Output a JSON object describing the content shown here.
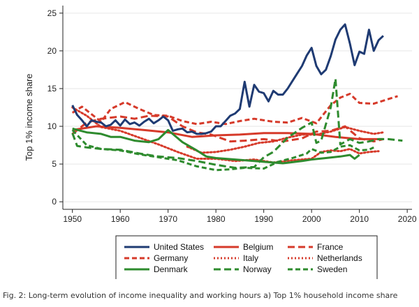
{
  "figure": {
    "caption": "Fig. 2: Long-term evolution of income inequality and working hours a) Top 1% household income share"
  },
  "chart_data": {
    "type": "line",
    "ylabel": "Top 1% income share",
    "xlabel": "",
    "xlim": [
      1948,
      2021
    ],
    "ylim": [
      -1,
      26
    ],
    "x_ticks": [
      1950,
      1960,
      1970,
      1980,
      1990,
      2000,
      2010,
      2020
    ],
    "y_ticks": [
      0,
      5,
      10,
      15,
      20,
      25
    ],
    "grid": "horizontal",
    "legend_position": "bottom",
    "series": [
      {
        "name": "United States",
        "color": "#1f3b73",
        "dash": "solid",
        "x": [
          1950,
          1951,
          1952,
          1953,
          1954,
          1955,
          1956,
          1957,
          1958,
          1959,
          1960,
          1961,
          1962,
          1963,
          1964,
          1965,
          1966,
          1967,
          1968,
          1969,
          1970,
          1971,
          1972,
          1973,
          1974,
          1975,
          1976,
          1977,
          1978,
          1979,
          1980,
          1981,
          1982,
          1983,
          1984,
          1985,
          1986,
          1987,
          1988,
          1989,
          1990,
          1991,
          1992,
          1993,
          1994,
          1995,
          1996,
          1997,
          1998,
          1999,
          2000,
          2001,
          2002,
          2003,
          2004,
          2005,
          2006,
          2007,
          2008,
          2009,
          2010,
          2011,
          2012,
          2013,
          2014,
          2015
        ],
        "y": [
          12.8,
          11.5,
          10.8,
          10.0,
          10.8,
          10.6,
          10.5,
          10.0,
          10.2,
          10.8,
          10.1,
          10.9,
          10.3,
          10.5,
          10.1,
          10.6,
          11.0,
          10.4,
          10.8,
          11.3,
          10.8,
          9.4,
          9.6,
          9.7,
          9.2,
          9.3,
          9.0,
          9.0,
          9.1,
          9.3,
          10.0,
          10.0,
          10.7,
          11.4,
          11.7,
          12.3,
          15.9,
          12.6,
          15.5,
          14.6,
          14.4,
          13.3,
          14.7,
          14.2,
          14.2,
          15.0,
          16.0,
          17.0,
          18.0,
          19.4,
          20.4,
          18.0,
          16.9,
          17.5,
          19.3,
          21.5,
          22.8,
          23.5,
          21.0,
          18.1,
          19.9,
          19.6,
          22.8,
          20.0,
          21.4,
          22.0
        ]
      },
      {
        "name": "Belgium",
        "color": "#d63a2a",
        "dash": "solid",
        "x": [
          1950,
          1955,
          1960,
          1965,
          1970,
          1975,
          1980,
          1985,
          1990,
          1995,
          2000,
          2005,
          2010,
          2015
        ],
        "y": [
          9.5,
          10.0,
          9.8,
          9.5,
          9.2,
          8.6,
          8.8,
          8.9,
          9.1,
          9.1,
          9.0,
          8.6,
          8.3,
          8.3
        ]
      },
      {
        "name": "France",
        "color": "#d63a2a",
        "dash": "longdash",
        "x": [
          1950,
          1953,
          1956,
          1960,
          1963,
          1966,
          1970,
          1973,
          1976,
          1979,
          1983,
          1986,
          1990,
          1994,
          1998,
          2001,
          2004,
          2007,
          2010,
          2013,
          2015
        ],
        "y": [
          9.0,
          10.5,
          11.0,
          11.3,
          11.0,
          11.4,
          11.3,
          10.0,
          9.2,
          8.9,
          8.0,
          8.1,
          8.3,
          8.0,
          8.4,
          9.3,
          9.4,
          10.0,
          8.4,
          8.0,
          8.3
        ]
      },
      {
        "name": "Germany",
        "color": "#d63a2a",
        "dash": "shortdash",
        "x": [
          1950,
          1952,
          1954,
          1956,
          1958,
          1961,
          1964,
          1967,
          1970,
          1973,
          1976,
          1979,
          1982,
          1985,
          1988,
          1992,
          1995,
          1998,
          2001,
          2004,
          2006,
          2008,
          2010,
          2013,
          2016,
          2018
        ],
        "y": [
          11.8,
          12.6,
          11.6,
          10.6,
          12.3,
          13.2,
          12.3,
          11.5,
          11.4,
          10.7,
          10.3,
          10.6,
          10.3,
          10.7,
          11.0,
          10.6,
          10.5,
          11.1,
          10.4,
          12.8,
          13.8,
          14.3,
          13.1,
          13.0,
          13.6,
          14.0
        ]
      },
      {
        "name": "Italy",
        "color": "#d63a2a",
        "dash": "dotted",
        "x": [
          1974,
          1977,
          1980,
          1983,
          1986,
          1989,
          1992,
          1995,
          1998,
          2001,
          2004,
          2007,
          2010,
          2013,
          2015
        ],
        "y": [
          7.3,
          6.5,
          6.6,
          6.9,
          7.3,
          7.8,
          8.0,
          8.5,
          8.9,
          8.9,
          9.3,
          9.9,
          9.4,
          9.0,
          9.2
        ]
      },
      {
        "name": "Netherlands",
        "color": "#d63a2a",
        "dash": "dotted",
        "x": [
          1950,
          1953,
          1956,
          1960,
          1964,
          1968,
          1972,
          1976,
          1980,
          1984,
          1988,
          1992,
          1996,
          2000,
          2002,
          2004,
          2006,
          2008,
          2010,
          2012,
          2014
        ],
        "y": [
          12.5,
          11.4,
          9.9,
          9.4,
          8.5,
          7.6,
          6.6,
          5.7,
          5.7,
          5.4,
          5.6,
          5.2,
          5.5,
          5.7,
          6.6,
          6.8,
          6.7,
          7.0,
          6.4,
          6.6,
          6.7
        ]
      },
      {
        "name": "Denmark",
        "color": "#2e8b2e",
        "dash": "solid",
        "x": [
          1950,
          1953,
          1956,
          1958,
          1960,
          1963,
          1966,
          1968,
          1970,
          1973,
          1976,
          1978,
          1980,
          1984,
          1988,
          1990,
          1994,
          1998,
          2000,
          2003,
          2006,
          2008,
          2009,
          2010
        ],
        "y": [
          9.7,
          9.2,
          9.0,
          8.6,
          8.6,
          8.1,
          7.9,
          8.3,
          9.5,
          7.9,
          6.8,
          6.0,
          5.8,
          5.6,
          5.4,
          5.3,
          5.1,
          5.4,
          5.6,
          5.8,
          6.0,
          6.2,
          5.7,
          6.2
        ]
      },
      {
        "name": "Norway",
        "color": "#2e8b2e",
        "dash": "longdash",
        "x": [
          1950,
          1951,
          1953,
          1956,
          1960,
          1964,
          1968,
          1972,
          1976,
          1980,
          1984,
          1988,
          1990,
          1992,
          1995,
          1998,
          2000,
          2001,
          2002,
          2004,
          2005,
          2006,
          2008,
          2010,
          2012,
          2014,
          2016,
          2019
        ],
        "y": [
          9.1,
          7.4,
          7.2,
          7.0,
          6.9,
          6.4,
          6.0,
          5.8,
          5.4,
          4.9,
          4.5,
          4.6,
          5.9,
          6.6,
          8.5,
          9.8,
          10.5,
          7.8,
          8.1,
          12.5,
          16.3,
          7.6,
          8.3,
          7.8,
          8.0,
          8.3,
          8.3,
          8.1
        ]
      },
      {
        "name": "Sweden",
        "color": "#2e8b2e",
        "dash": "shortdash",
        "x": [
          1950,
          1953,
          1956,
          1960,
          1964,
          1968,
          1972,
          1976,
          1980,
          1983,
          1986,
          1990,
          1993,
          1996,
          1999,
          2000,
          2002,
          2004,
          2006,
          2008,
          2010,
          2012,
          2013
        ],
        "y": [
          9.5,
          7.5,
          7.0,
          6.8,
          6.3,
          5.9,
          5.5,
          4.7,
          4.2,
          4.3,
          4.5,
          4.4,
          5.3,
          5.8,
          6.4,
          7.0,
          6.5,
          6.6,
          7.3,
          7.5,
          6.8,
          6.9,
          7.2
        ]
      }
    ],
    "legend_layout": [
      [
        "United States",
        "Belgium",
        "France"
      ],
      [
        "Germany",
        "Italy",
        "Netherlands"
      ],
      [
        "Denmark",
        "Norway",
        "Sweden"
      ]
    ]
  }
}
